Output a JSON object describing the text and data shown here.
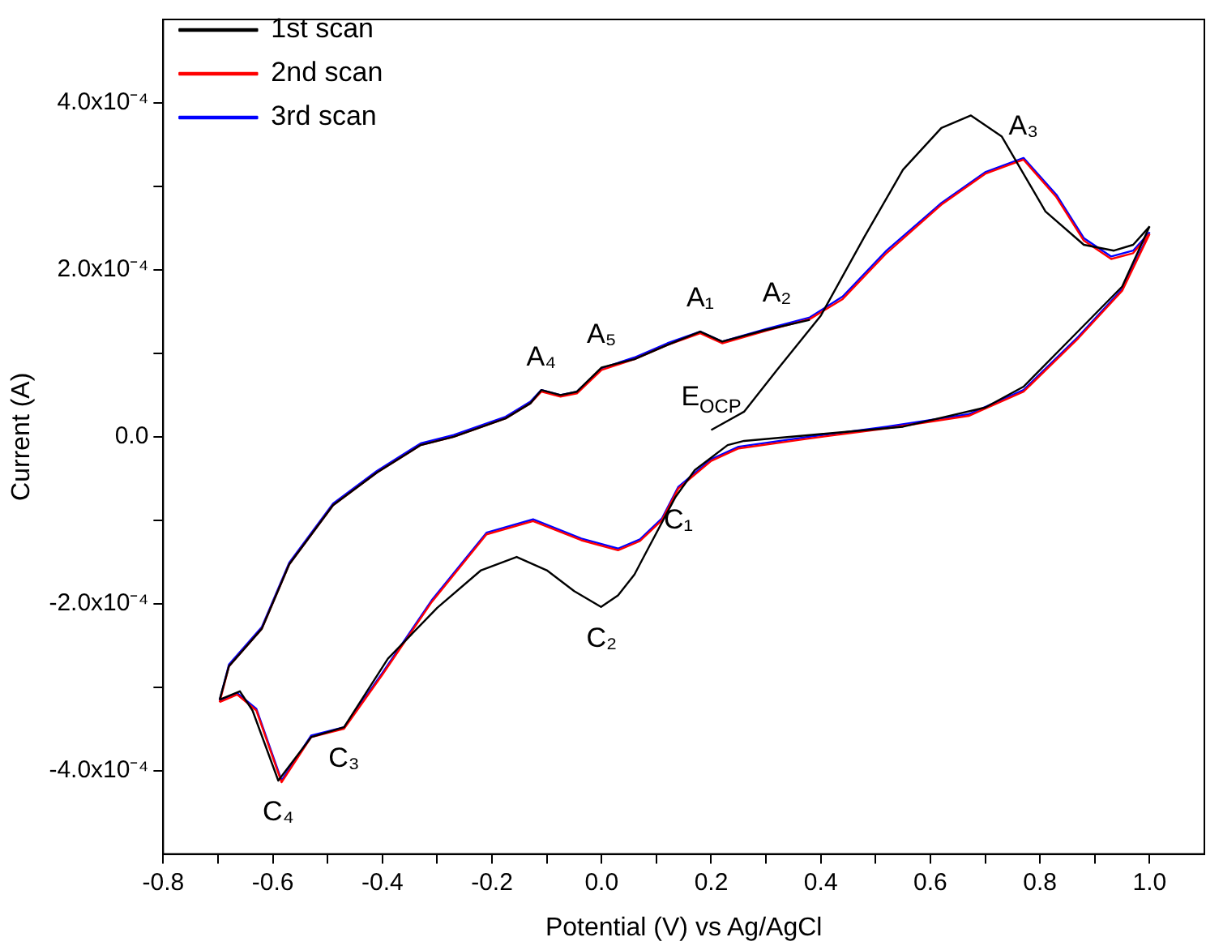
{
  "chart_data": {
    "type": "line",
    "xlabel": "Potential (V) vs Ag/AgCl",
    "ylabel": "Current (A)",
    "xlim": [
      -0.8,
      1.1
    ],
    "ylim": [
      -0.0005,
      0.0005
    ],
    "xticks": [
      {
        "value": -0.8,
        "label": "-0.8"
      },
      {
        "value": -0.7,
        "label": null
      },
      {
        "value": -0.6,
        "label": "-0.6"
      },
      {
        "value": -0.5,
        "label": null
      },
      {
        "value": -0.4,
        "label": "-0.4"
      },
      {
        "value": -0.3,
        "label": null
      },
      {
        "value": -0.2,
        "label": "-0.2"
      },
      {
        "value": -0.1,
        "label": null
      },
      {
        "value": 0,
        "label": "0.0"
      },
      {
        "value": 0.1,
        "label": null
      },
      {
        "value": 0.2,
        "label": "0.2"
      },
      {
        "value": 0.3,
        "label": null
      },
      {
        "value": 0.4,
        "label": "0.4"
      },
      {
        "value": 0.5,
        "label": null
      },
      {
        "value": 0.6,
        "label": "0.6"
      },
      {
        "value": 0.7,
        "label": null
      },
      {
        "value": 0.8,
        "label": "0.8"
      },
      {
        "value": 0.9,
        "label": null
      },
      {
        "value": 1.0,
        "label": "1.0"
      }
    ],
    "yticks": [
      {
        "value": -0.0004,
        "label": "-4.0x10⁻⁴"
      },
      {
        "value": -0.0003,
        "label": null
      },
      {
        "value": -0.0002,
        "label": "-2.0x10⁻⁴"
      },
      {
        "value": -0.0001,
        "label": null
      },
      {
        "value": 0,
        "label": "0.0"
      },
      {
        "value": 0.0001,
        "label": null
      },
      {
        "value": 0.0002,
        "label": "2.0x10⁻⁴"
      },
      {
        "value": 0.0003,
        "label": null
      },
      {
        "value": 0.0004,
        "label": "4.0x10⁻⁴"
      }
    ],
    "grid": false,
    "legend": "top left",
    "marker": "none",
    "line_style": "solid",
    "annotations": [
      {
        "text": "A₁",
        "x": 0.18,
        "y": 0.000126
      },
      {
        "text": "A₂",
        "x": 0.32,
        "y": 0.000132
      },
      {
        "text": "A₃",
        "x": 0.77,
        "y": 0.000332
      },
      {
        "text": "A₄",
        "x": -0.11,
        "y": 5.6e-05
      },
      {
        "text": "A₅",
        "x": 0.0,
        "y": 8.3e-05
      },
      {
        "text": "E$_{OCP}$",
        "x": 0.2,
        "y": 8e-06
      },
      {
        "text": "C₁",
        "x": 0.14,
        "y": -6.2e-05
      },
      {
        "text": "C₂",
        "x": 0.0,
        "y": -0.000204
      },
      {
        "text": "C₃",
        "x": -0.47,
        "y": -0.000348
      },
      {
        "text": "C₄",
        "x": -0.59,
        "y": -0.000412
      }
    ],
    "series": [
      {
        "name": "1st scan",
        "color": "#000000",
        "x": [
          0.2,
          0.26,
          0.32,
          0.4,
          0.48,
          0.55,
          0.62,
          0.674,
          0.73,
          0.81,
          0.88,
          0.935,
          0.97,
          1.0
        ],
        "values": [
          8e-06,
          3e-05,
          8e-05,
          0.000145,
          0.00024,
          0.00032,
          0.00037,
          0.000385,
          0.00036,
          0.00027,
          0.00023,
          0.000223,
          0.00023,
          0.000252
        ]
      },
      {
        "color": "#000000",
        "x": [
          1.0,
          0.95,
          0.86,
          0.77,
          0.7,
          0.55,
          0.38,
          0.26,
          0.23,
          0.17,
          0.135,
          0.08,
          0.06,
          0.03,
          -0.001,
          -0.05,
          -0.1,
          -0.155,
          -0.22,
          -0.3,
          -0.39,
          -0.47,
          -0.53,
          -0.59,
          -0.637,
          -0.66,
          -0.697
        ],
        "values": [
          0.000252,
          0.00018,
          0.00012,
          6e-05,
          3.5e-05,
          1.2e-05,
          2e-06,
          -5e-06,
          -1e-05,
          -4e-05,
          -7.2e-05,
          -0.00014,
          -0.000165,
          -0.00019,
          -0.000204,
          -0.000185,
          -0.00016,
          -0.000144,
          -0.00016,
          -0.000205,
          -0.000266,
          -0.000348,
          -0.00036,
          -0.000412,
          -0.000328,
          -0.000305,
          -0.000315
        ]
      },
      {
        "color": "#000000",
        "x": [
          -0.697,
          -0.68,
          -0.62,
          -0.57,
          -0.49,
          -0.41,
          -0.33,
          -0.27,
          -0.175,
          -0.13,
          -0.11,
          -0.075,
          -0.045,
          0.0,
          0.06,
          0.12,
          0.18,
          0.22,
          0.3,
          0.38
        ],
        "values": [
          -0.000315,
          -0.000275,
          -0.00023,
          -0.000153,
          -8.2e-05,
          -4.3e-05,
          -1e-05,
          0.0,
          2.2e-05,
          4e-05,
          5.6e-05,
          5e-05,
          5.4e-05,
          8.3e-05,
          9.3e-05,
          0.00011,
          0.000126,
          0.000114,
          0.000128,
          0.00014
        ]
      },
      {
        "name": "2nd scan",
        "color": "#ff0000",
        "x": [
          -0.697,
          -0.68,
          -0.62,
          -0.57,
          -0.49,
          -0.41,
          -0.33,
          -0.27,
          -0.175,
          -0.13,
          -0.11,
          -0.075,
          -0.045,
          0.0,
          0.06,
          0.12,
          0.18,
          0.22,
          0.3,
          0.38,
          0.44,
          0.52,
          0.62,
          0.7,
          0.77,
          0.83,
          0.88,
          0.93,
          0.97,
          1.0
        ],
        "values": [
          -0.000318,
          -0.000275,
          -0.00023,
          -0.000153,
          -8.2e-05,
          -4.3e-05,
          -1e-05,
          0.0,
          2.2e-05,
          4e-05,
          5.4e-05,
          4.8e-05,
          5.2e-05,
          8e-05,
          9.3e-05,
          0.00011,
          0.000124,
          0.000112,
          0.000127,
          0.000141,
          0.000165,
          0.00022,
          0.000278,
          0.000315,
          0.000332,
          0.000287,
          0.000235,
          0.000213,
          0.00022,
          0.000243
        ]
      },
      {
        "color": "#ff0000",
        "x": [
          1.0,
          0.95,
          0.87,
          0.77,
          0.67,
          0.52,
          0.38,
          0.25,
          0.2,
          0.14,
          0.11,
          0.07,
          0.03,
          -0.037,
          -0.125,
          -0.21,
          -0.31,
          -0.4,
          -0.47,
          -0.53,
          -0.584,
          -0.63,
          -0.665,
          -0.697
        ],
        "values": [
          0.000243,
          0.000175,
          0.000118,
          5.4e-05,
          2.5e-05,
          1e-05,
          -2e-06,
          -1.4e-05,
          -2.9e-05,
          -6.2e-05,
          -0.0001,
          -0.000125,
          -0.000136,
          -0.000124,
          -0.000101,
          -0.000117,
          -0.000198,
          -0.000285,
          -0.00035,
          -0.00036,
          -0.000414,
          -0.000328,
          -0.000309,
          -0.000318
        ]
      },
      {
        "name": "3rd scan",
        "color": "#0000ff",
        "x": [
          -0.697,
          -0.68,
          -0.62,
          -0.57,
          -0.49,
          -0.41,
          -0.33,
          -0.27,
          -0.175,
          -0.13,
          -0.11,
          -0.075,
          -0.045,
          0.0,
          0.06,
          0.12,
          0.18,
          0.22,
          0.3,
          0.38,
          0.44,
          0.52,
          0.62,
          0.7,
          0.77,
          0.83,
          0.88,
          0.93,
          0.97,
          1.0
        ],
        "values": [
          -0.000316,
          -0.000273,
          -0.000228,
          -0.000151,
          -8e-05,
          -4.1e-05,
          -8e-06,
          2e-06,
          2.4e-05,
          4.2e-05,
          5.6e-05,
          5e-05,
          5.4e-05,
          8.2e-05,
          9.5e-05,
          0.000112,
          0.000126,
          0.000114,
          0.000129,
          0.000143,
          0.000168,
          0.000223,
          0.00028,
          0.000317,
          0.000334,
          0.00029,
          0.000238,
          0.000216,
          0.000223,
          0.000245
        ]
      },
      {
        "color": "#0000ff",
        "x": [
          1.0,
          0.95,
          0.87,
          0.77,
          0.67,
          0.52,
          0.38,
          0.25,
          0.2,
          0.14,
          0.11,
          0.07,
          0.03,
          -0.037,
          -0.125,
          -0.21,
          -0.31,
          -0.4,
          -0.47,
          -0.53,
          -0.584,
          -0.63,
          -0.665,
          -0.697
        ],
        "values": [
          0.000245,
          0.000177,
          0.00012,
          5.6e-05,
          2.7e-05,
          1.2e-05,
          0.0,
          -1.2e-05,
          -2.7e-05,
          -6e-05,
          -9.8e-05,
          -0.000123,
          -0.000134,
          -0.000122,
          -9.9e-05,
          -0.000115,
          -0.000196,
          -0.000283,
          -0.000348,
          -0.000358,
          -0.000412,
          -0.000326,
          -0.000307,
          -0.000316
        ]
      }
    ]
  }
}
